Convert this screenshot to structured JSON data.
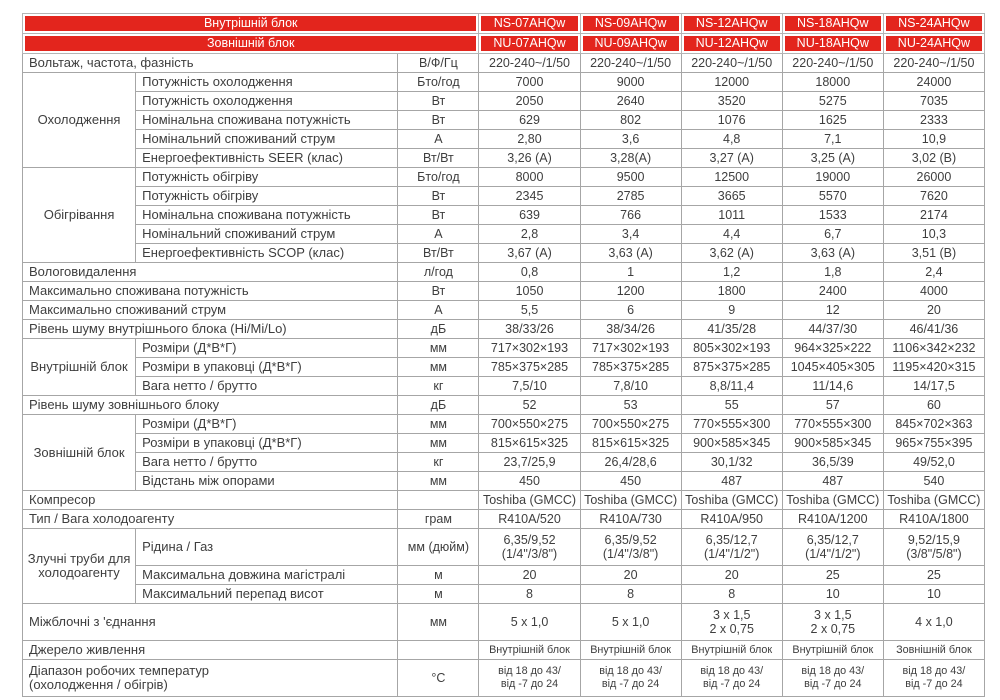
{
  "table": {
    "header": {
      "indoor_label": "Внутрішній  блок",
      "outdoor_label": "Зовнішній  блок",
      "indoor_models": [
        "NS-07AHQw",
        "NS-09AHQw",
        "NS-12AHQw",
        "NS-18AHQw",
        "NS-24AHQw"
      ],
      "outdoor_models": [
        "NU-07AHQw",
        "NU-09AHQw",
        "NU-12AHQw",
        "NU-18AHQw",
        "NU-24AHQw"
      ]
    },
    "accent_color": "#e3251d",
    "sections": [
      {
        "label": "Вольтаж, частота, фазність",
        "unit": "В/Ф/Гц",
        "values": [
          "220-240~/1/50",
          "220-240~/1/50",
          "220-240~/1/50",
          "220-240~/1/50",
          "220-240~/1/50"
        ]
      },
      {
        "group": "Охолодження",
        "rows": [
          {
            "label": "Потужність охолодження",
            "unit": "Бто/год",
            "values": [
              "7000",
              "9000",
              "12000",
              "18000",
              "24000"
            ]
          },
          {
            "label": "Потужність охолодження",
            "unit": "Вт",
            "values": [
              "2050",
              "2640",
              "3520",
              "5275",
              "7035"
            ]
          },
          {
            "label": "Номінальна споживана потужність",
            "unit": "Вт",
            "values": [
              "629",
              "802",
              "1076",
              "1625",
              "2333"
            ]
          },
          {
            "label": "Номінальний споживаний струм",
            "unit": "А",
            "values": [
              "2,80",
              "3,6",
              "4,8",
              "7,1",
              "10,9"
            ]
          },
          {
            "label": "Енергоефективність  SEER (клас)",
            "unit": "Вт/Вт",
            "values": [
              "3,26 (A)",
              "3,28(A)",
              "3,27 (A)",
              "3,25 (A)",
              "3,02 (B)"
            ]
          }
        ]
      },
      {
        "group": "Обігрівання",
        "rows": [
          {
            "label": "Потужність обігріву",
            "unit": "Бто/год",
            "values": [
              "8000",
              "9500",
              "12500",
              "19000",
              "26000"
            ]
          },
          {
            "label": "Потужність обігріву",
            "unit": "Вт",
            "values": [
              "2345",
              "2785",
              "3665",
              "5570",
              "7620"
            ]
          },
          {
            "label": "Номінальна споживана потужність",
            "unit": "Вт",
            "values": [
              "639",
              "766",
              "1011",
              "1533",
              "2174"
            ]
          },
          {
            "label": "Номінальний споживаний струм",
            "unit": "А",
            "values": [
              "2,8",
              "3,4",
              "4,4",
              "6,7",
              "10,3"
            ]
          },
          {
            "label": "Енергоефективність  SCOP (клас)",
            "unit": "Вт/Вт",
            "values": [
              "3,67 (A)",
              "3,63 (A)",
              "3,62 (A)",
              "3,63 (A)",
              "3,51 (B)"
            ]
          }
        ]
      },
      {
        "label": "Вологовидалення",
        "unit": "л/год",
        "values": [
          "0,8",
          "1",
          "1,2",
          "1,8",
          "2,4"
        ]
      },
      {
        "label": "Максимально споживана потужність",
        "unit": "Вт",
        "values": [
          "1050",
          "1200",
          "1800",
          "2400",
          "4000"
        ]
      },
      {
        "label": "Максимально споживаний струм",
        "unit": "А",
        "values": [
          "5,5",
          "6",
          "9",
          "12",
          "20"
        ]
      },
      {
        "label": "Рівень шуму внутрішнього блока  (Hi/Mi/Lo)",
        "unit": "дБ",
        "values": [
          "38/33/26",
          "38/34/26",
          "41/35/28",
          "44/37/30",
          "46/41/36"
        ]
      },
      {
        "group": "Внутрішній блок",
        "rows": [
          {
            "label": "Розміри (Д*В*Г)",
            "unit": "мм",
            "values": [
              "717×302×193",
              "717×302×193",
              "805×302×193",
              "964×325×222",
              "1106×342×232"
            ]
          },
          {
            "label": "Розміри в упаковці  (Д*В*Г)",
            "unit": "мм",
            "values": [
              "785×375×285",
              "785×375×285",
              "875×375×285",
              "1045×405×305",
              "1195×420×315"
            ]
          },
          {
            "label": "Вага нетто  / брутто",
            "unit": "кг",
            "values": [
              "7,5/10",
              "7,8/10",
              "8,8/11,4",
              "11/14,6",
              "14/17,5"
            ]
          }
        ]
      },
      {
        "label": "Рівень шуму зовнішнього блоку",
        "unit": "дБ",
        "values": [
          "52",
          "53",
          "55",
          "57",
          "60"
        ]
      },
      {
        "group": "Зовнішній блок",
        "rows": [
          {
            "label": "Розміри (Д*В*Г)",
            "unit": "мм",
            "values": [
              "700×550×275",
              "700×550×275",
              "770×555×300",
              "770×555×300",
              "845×702×363"
            ]
          },
          {
            "label": "Розміри в упаковці  (Д*В*Г)",
            "unit": "мм",
            "values": [
              "815×615×325",
              "815×615×325",
              "900×585×345",
              "900×585×345",
              "965×755×395"
            ]
          },
          {
            "label": "Вага нетто  / брутто",
            "unit": "кг",
            "values": [
              "23,7/25,9",
              "26,4/28,6",
              "30,1/32",
              "36,5/39",
              "49/52,0"
            ]
          },
          {
            "label": "Відстань між опорами",
            "unit": "мм",
            "values": [
              "450",
              "450",
              "487",
              "487",
              "540"
            ]
          }
        ]
      },
      {
        "label": "Компресор",
        "unit": "",
        "values": [
          "Toshiba (GMCC)",
          "Toshiba (GMCC)",
          "Toshiba (GMCC)",
          "Toshiba (GMCC)",
          "Toshiba (GMCC)"
        ]
      },
      {
        "label": "Тип / Вага холодоагенту",
        "unit": "грам",
        "values": [
          "R410A/520",
          "R410A/730",
          "R410A/950",
          "R410A/1200",
          "R410A/1800"
        ]
      },
      {
        "group": "Злучні труби для\nхолодоагенту",
        "rows": [
          {
            "label": "Рідина / Газ",
            "unit": "мм (дюйм)",
            "tall": true,
            "values": [
              "6,35/9,52\n(1/4\"/3/8\")",
              "6,35/9,52\n(1/4\"/3/8\")",
              "6,35/12,7\n(1/4\"/1/2\")",
              "6,35/12,7\n(1/4\"/1/2\")",
              "9,52/15,9\n(3/8\"/5/8\")"
            ]
          },
          {
            "label": "Максимальна довжина магістралі",
            "unit": "м",
            "values": [
              "20",
              "20",
              "20",
              "25",
              "25"
            ]
          },
          {
            "label": "Максимальний перепад висот",
            "unit": "м",
            "values": [
              "8",
              "8",
              "8",
              "10",
              "10"
            ]
          }
        ]
      },
      {
        "label": "Міжблочні з 'єднання",
        "unit": "мм",
        "tall": true,
        "values": [
          "5 x 1,0",
          "5 x 1,0",
          "3 x 1,5\n2 x 0,75",
          "3 x 1,5\n2 x 0,75",
          "4 x 1,0"
        ]
      },
      {
        "label": "Джерело живлення",
        "unit": "",
        "small": true,
        "values": [
          "Внутрішній блок",
          "Внутрішній блок",
          "Внутрішній блок",
          "Внутрішній блок",
          "Зовнішній блок"
        ]
      },
      {
        "label": "Діапазон робочих температур\n(охолодження  / обігрів)",
        "unit": "°C",
        "tall": true,
        "small": true,
        "values": [
          "від 18 до 43/\nвід -7 до 24",
          "від 18 до 43/\nвід -7 до 24",
          "від 18 до 43/\nвід -7 до 24",
          "від 18 до 43/\nвід -7 до 24",
          "від 18 до 43/\nвід -7 до 24"
        ]
      }
    ]
  }
}
